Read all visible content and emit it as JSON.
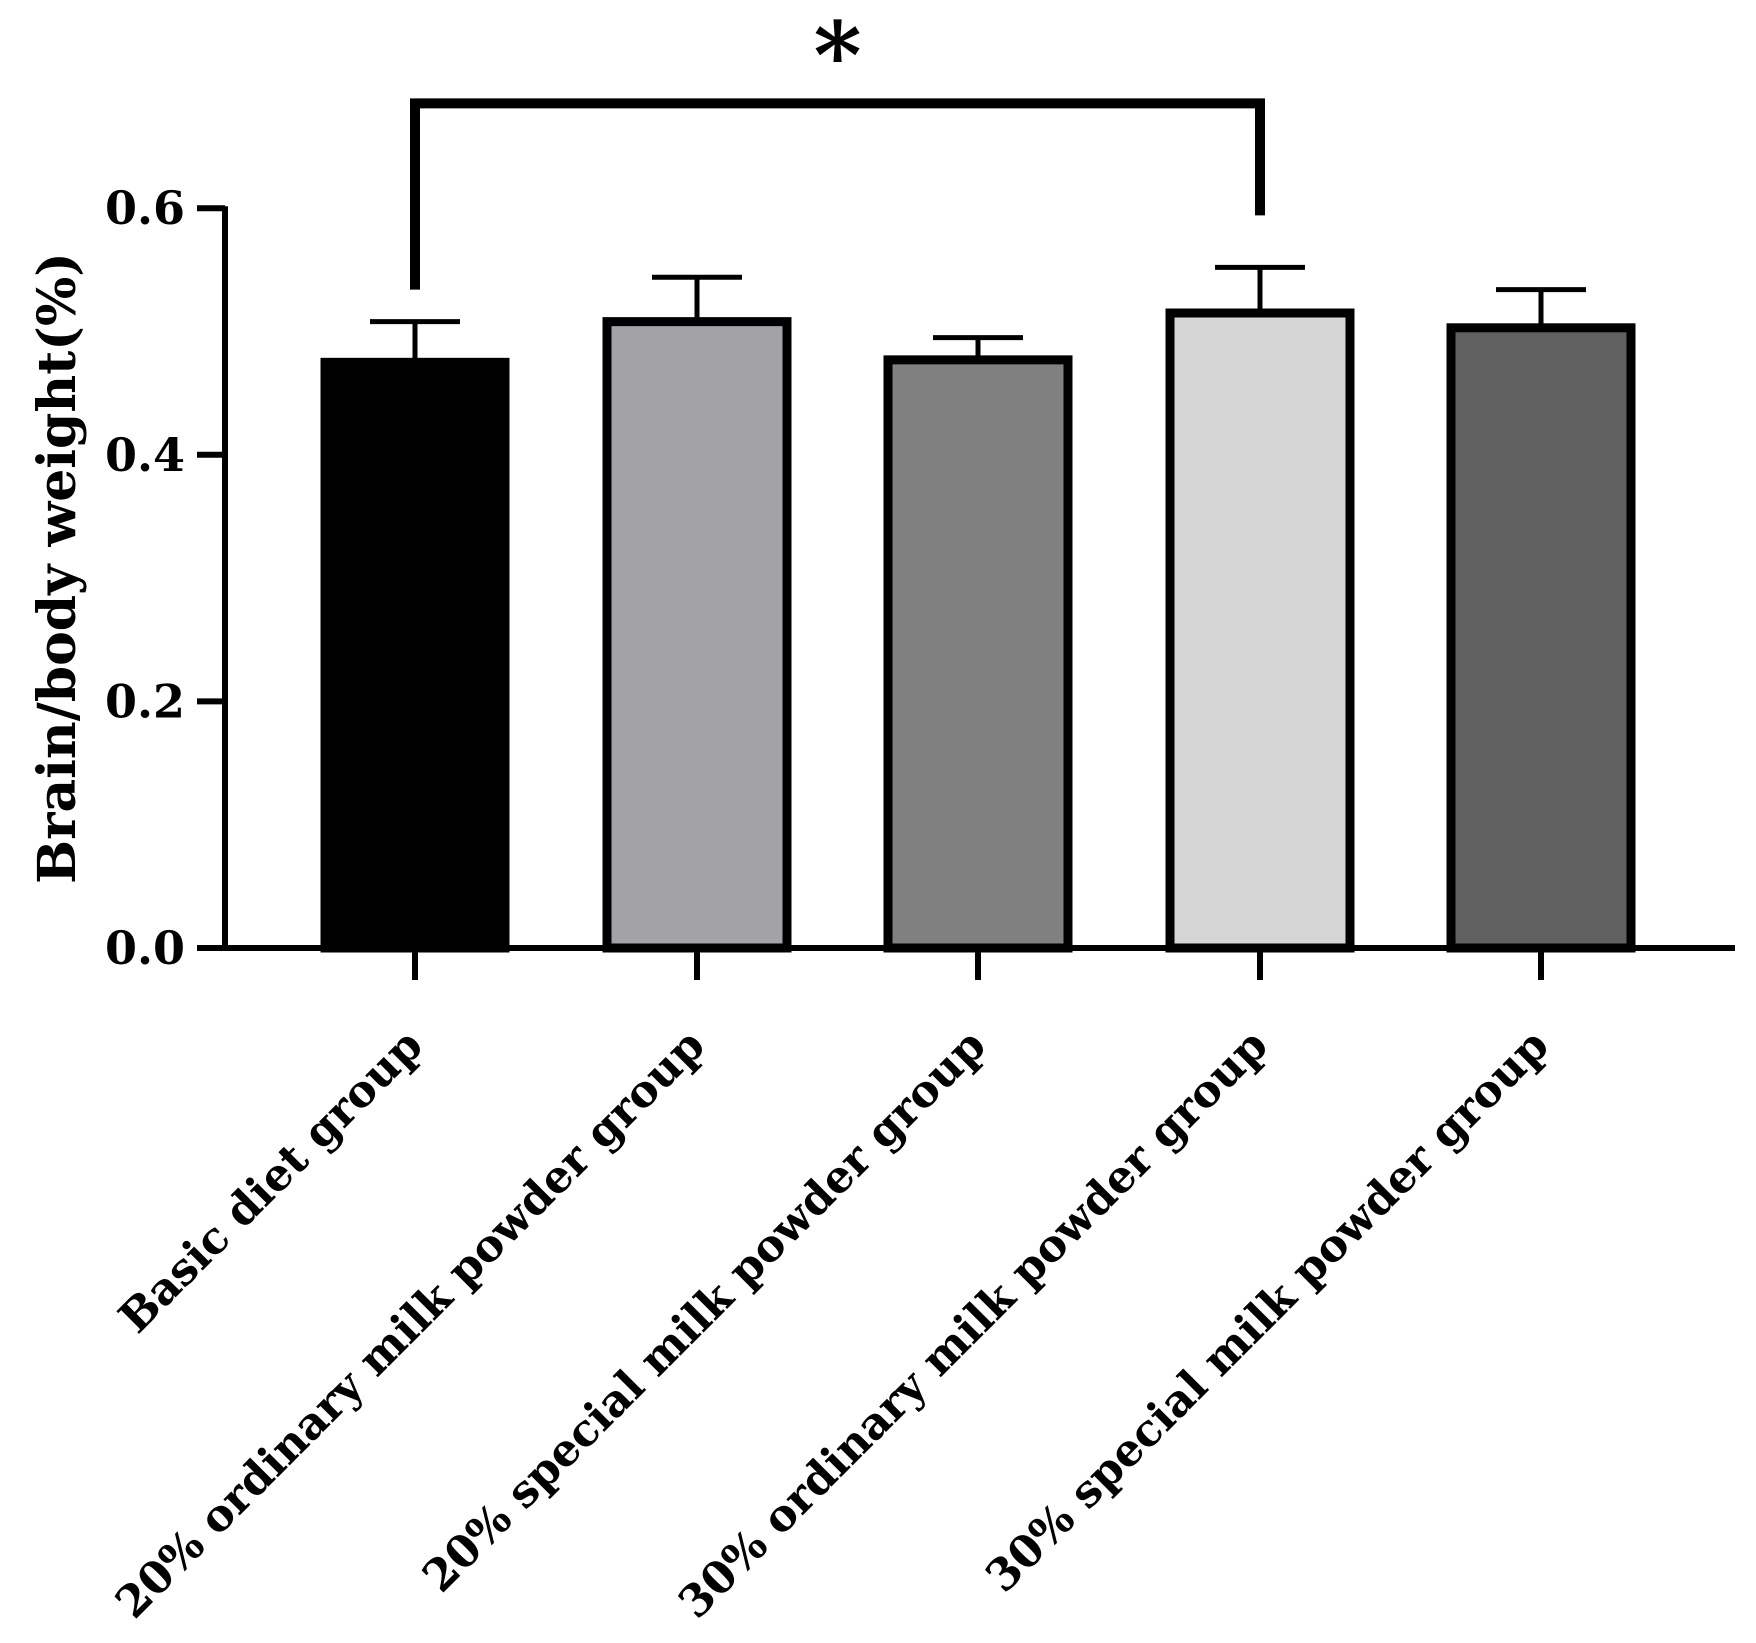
{
  "chart_data": {
    "type": "bar",
    "title": "",
    "xlabel": "",
    "ylabel": "Brain/body weight(%)",
    "ylim": [
      0,
      0.6
    ],
    "yticks": [
      "0.0",
      "0.2",
      "0.4",
      "0.6"
    ],
    "ytick_values": [
      0.0,
      0.2,
      0.4,
      0.6
    ],
    "categories": [
      "Basic diet group",
      "20% ordinary milk powder group",
      "20% special milk powder group",
      "30% ordinary milk powder group",
      "30% special milk powder group"
    ],
    "values": [
      0.475,
      0.508,
      0.477,
      0.515,
      0.503
    ],
    "errors": [
      0.033,
      0.036,
      0.018,
      0.037,
      0.031
    ],
    "colors": [
      "#000000",
      "#a3a3a7",
      "#808080",
      "#d6d6d6",
      "#606060"
    ],
    "significance": [
      {
        "from": 0,
        "to": 3,
        "label": "*",
        "y": 0.685
      }
    ]
  }
}
